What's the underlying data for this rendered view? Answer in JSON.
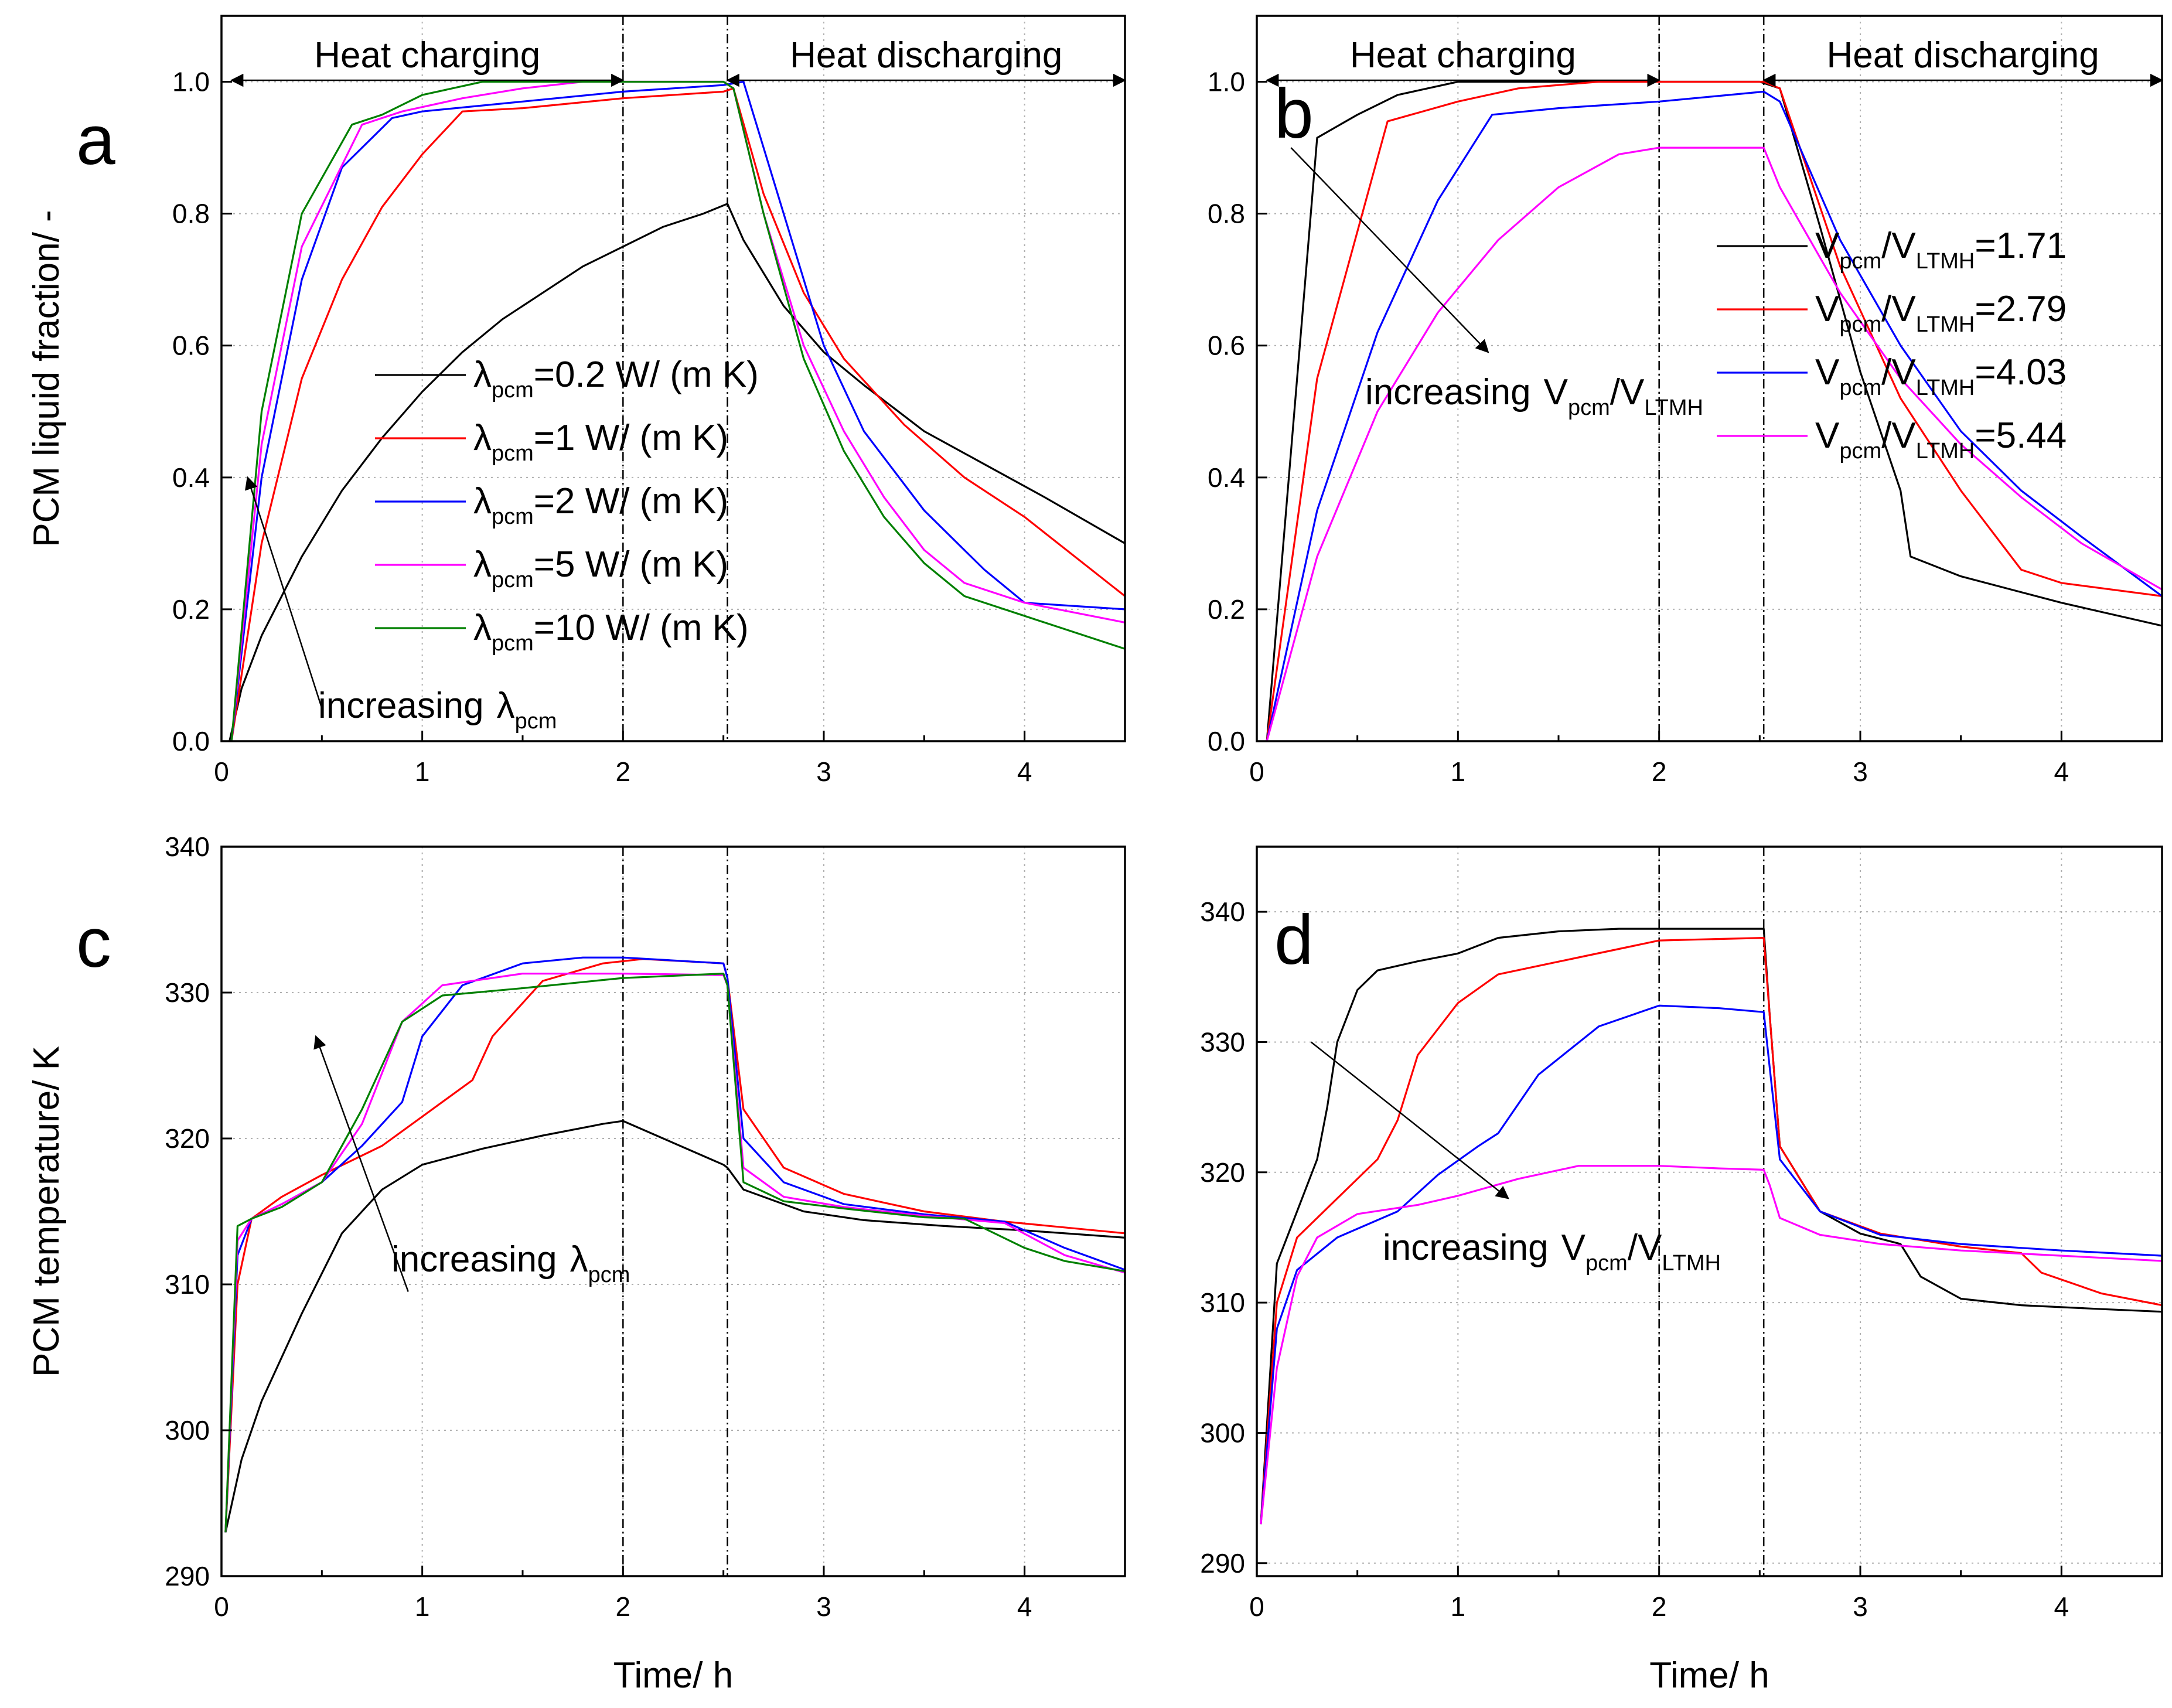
{
  "figure": {
    "shared_x_label": "Time/ h"
  },
  "chart_data": [
    {
      "id": "a",
      "type": "line",
      "panel_letter": "a",
      "xlabel": "",
      "ylabel": "PCM liquid fraction/ -",
      "xlim": [
        0,
        4.5
      ],
      "ylim": [
        0,
        1.1
      ],
      "xticks": [
        0,
        1,
        2,
        3,
        4
      ],
      "yticks": [
        0.0,
        0.2,
        0.4,
        0.6,
        0.8,
        1.0
      ],
      "ytick_labels": [
        "0.0",
        "0.2",
        "0.4",
        "0.6",
        "0.8",
        "1.0"
      ],
      "grid": true,
      "vlines": [
        2.0,
        2.52
      ],
      "phase_labels": {
        "charging": {
          "text": "Heat charging",
          "from": 0.05,
          "to": 2.0
        },
        "discharging": {
          "text": "Heat discharging",
          "from": 2.52,
          "to": 4.5
        }
      },
      "legend_location": "center",
      "annotation": {
        "text": "increasing",
        "sym": "λ",
        "sub": "pcm",
        "sup": "",
        "arrow": {
          "from": [
            0.5,
            0.05
          ],
          "to": [
            0.13,
            0.4
          ]
        }
      },
      "series": [
        {
          "name": "=0.2 W/ (m K)",
          "sym": "λ",
          "sub": "pcm",
          "color": "#000000",
          "x": [
            0.04,
            0.1,
            0.2,
            0.4,
            0.6,
            0.8,
            1.0,
            1.2,
            1.4,
            1.6,
            1.8,
            2.0,
            2.2,
            2.4,
            2.52,
            2.6,
            2.8,
            3.0,
            3.2,
            3.5,
            3.8,
            4.1,
            4.5
          ],
          "y": [
            0,
            0.08,
            0.16,
            0.28,
            0.38,
            0.46,
            0.53,
            0.59,
            0.64,
            0.68,
            0.72,
            0.75,
            0.78,
            0.8,
            0.815,
            0.76,
            0.66,
            0.59,
            0.54,
            0.47,
            0.42,
            0.37,
            0.3
          ]
        },
        {
          "name": "=1 W/ (m K)",
          "sym": "λ",
          "sub": "pcm",
          "color": "#ff0000",
          "x": [
            0.05,
            0.2,
            0.4,
            0.6,
            0.8,
            1.0,
            1.2,
            1.5,
            2.0,
            2.5,
            2.55,
            2.7,
            2.9,
            3.1,
            3.4,
            3.7,
            4.0,
            4.5
          ],
          "y": [
            0,
            0.3,
            0.55,
            0.7,
            0.81,
            0.89,
            0.955,
            0.96,
            0.975,
            0.985,
            0.99,
            0.83,
            0.68,
            0.58,
            0.48,
            0.4,
            0.34,
            0.22
          ]
        },
        {
          "name": "=2 W/ (m K)",
          "sym": "λ",
          "sub": "pcm",
          "color": "#0000ff",
          "x": [
            0.05,
            0.2,
            0.4,
            0.6,
            0.85,
            1.0,
            1.5,
            2.0,
            2.5,
            2.6,
            2.8,
            3.0,
            3.2,
            3.5,
            3.8,
            4.0,
            4.5
          ],
          "y": [
            0,
            0.4,
            0.7,
            0.87,
            0.945,
            0.955,
            0.97,
            0.985,
            0.995,
            1.0,
            0.8,
            0.6,
            0.47,
            0.35,
            0.26,
            0.21,
            0.2
          ]
        },
        {
          "name": "=5 W/ (m K)",
          "sym": "λ",
          "sub": "pcm",
          "color": "#ff00ff",
          "x": [
            0.05,
            0.2,
            0.4,
            0.7,
            0.9,
            1.2,
            1.5,
            1.8,
            2.0,
            2.5,
            2.55,
            2.7,
            2.9,
            3.1,
            3.3,
            3.5,
            3.7,
            4.0,
            4.5
          ],
          "y": [
            0,
            0.45,
            0.75,
            0.935,
            0.955,
            0.975,
            0.99,
            1.0,
            1.0,
            1.0,
            0.99,
            0.8,
            0.6,
            0.47,
            0.37,
            0.29,
            0.24,
            0.21,
            0.18
          ]
        },
        {
          "name": "=10 W/ (m K)",
          "sym": "λ",
          "sub": "pcm",
          "color": "#008000",
          "x": [
            0.05,
            0.2,
            0.4,
            0.65,
            0.8,
            1.0,
            1.3,
            1.5,
            2.0,
            2.5,
            2.55,
            2.7,
            2.9,
            3.1,
            3.3,
            3.5,
            3.7,
            4.0,
            4.5
          ],
          "y": [
            0,
            0.5,
            0.8,
            0.935,
            0.95,
            0.98,
            1.0,
            1.0,
            1.0,
            1.0,
            0.99,
            0.8,
            0.58,
            0.44,
            0.34,
            0.27,
            0.22,
            0.19,
            0.14
          ]
        }
      ]
    },
    {
      "id": "b",
      "type": "line",
      "panel_letter": "b",
      "xlabel": "",
      "ylabel": "",
      "xlim": [
        0,
        4.5
      ],
      "ylim": [
        0,
        1.1
      ],
      "xticks": [
        0,
        1,
        2,
        3,
        4
      ],
      "yticks": [
        0.0,
        0.2,
        0.4,
        0.6,
        0.8,
        1.0
      ],
      "ytick_labels": [
        "0.0",
        "0.2",
        "0.4",
        "0.6",
        "0.8",
        "1.0"
      ],
      "grid": true,
      "vlines": [
        2.0,
        2.52
      ],
      "phase_labels": {
        "charging": {
          "text": "Heat charging",
          "from": 0.05,
          "to": 2.0
        },
        "discharging": {
          "text": "Heat discharging",
          "from": 2.52,
          "to": 4.5
        }
      },
      "legend_location": "right",
      "annotation": {
        "text": "increasing",
        "sym": "V",
        "sub": "pcm",
        "sup": "LTMH",
        "arrow": {
          "from": [
            0.17,
            0.9
          ],
          "to": [
            1.15,
            0.59
          ]
        }
      },
      "series": [
        {
          "name": "/V",
          "sym": "V",
          "sub": "pcm",
          "sub2": "LTMH",
          "value": "=1.71",
          "color": "#000000",
          "x": [
            0.05,
            0.3,
            0.5,
            0.7,
            1.0,
            2.5,
            2.6,
            2.8,
            3.0,
            3.2,
            3.25,
            3.5,
            4.0,
            4.5
          ],
          "y": [
            0,
            0.915,
            0.95,
            0.98,
            1.0,
            1.0,
            0.99,
            0.78,
            0.56,
            0.38,
            0.28,
            0.25,
            0.21,
            0.175
          ]
        },
        {
          "name": "/V",
          "sym": "V",
          "sub": "pcm",
          "sub2": "LTMH",
          "value": "=2.79",
          "color": "#ff0000",
          "x": [
            0.05,
            0.3,
            0.65,
            1.0,
            1.3,
            1.7,
            2.0,
            2.52,
            2.6,
            2.9,
            3.2,
            3.5,
            3.8,
            4.0,
            4.5
          ],
          "y": [
            0,
            0.55,
            0.94,
            0.97,
            0.99,
            1.0,
            1.0,
            1.0,
            0.99,
            0.72,
            0.52,
            0.38,
            0.26,
            0.24,
            0.22
          ]
        },
        {
          "name": "/V",
          "sym": "V",
          "sub": "pcm",
          "sub2": "LTMH",
          "value": "=4.03",
          "color": "#0000ff",
          "x": [
            0.05,
            0.3,
            0.6,
            0.9,
            1.17,
            1.5,
            2.0,
            2.52,
            2.6,
            2.9,
            3.2,
            3.5,
            3.8,
            4.1,
            4.5
          ],
          "y": [
            0,
            0.35,
            0.62,
            0.82,
            0.95,
            0.96,
            0.97,
            0.985,
            0.97,
            0.76,
            0.6,
            0.47,
            0.38,
            0.31,
            0.22
          ]
        },
        {
          "name": "/V",
          "sym": "V",
          "sub": "pcm",
          "sub2": "LTMH",
          "value": "=5.44",
          "color": "#ff00ff",
          "x": [
            0.05,
            0.3,
            0.6,
            0.9,
            1.2,
            1.5,
            1.8,
            2.0,
            2.52,
            2.6,
            2.9,
            3.2,
            3.5,
            3.8,
            4.1,
            4.5
          ],
          "y": [
            0,
            0.28,
            0.5,
            0.65,
            0.76,
            0.84,
            0.89,
            0.9,
            0.9,
            0.84,
            0.68,
            0.55,
            0.45,
            0.37,
            0.3,
            0.23
          ]
        }
      ]
    },
    {
      "id": "c",
      "type": "line",
      "panel_letter": "c",
      "xlabel": "Time/ h",
      "ylabel": "PCM temperature/ K",
      "xlim": [
        0,
        4.5
      ],
      "ylim": [
        290,
        340
      ],
      "xticks": [
        0,
        1,
        2,
        3,
        4
      ],
      "yticks": [
        290,
        300,
        310,
        320,
        330,
        340
      ],
      "ytick_labels": [
        "290",
        "300",
        "310",
        "320",
        "330",
        "340"
      ],
      "grid": true,
      "vlines": [
        2.0,
        2.52
      ],
      "annotation": {
        "text": "increasing",
        "sym": "λ",
        "sub": "pcm",
        "sup": "",
        "arrow": {
          "from": [
            0.93,
            309.5
          ],
          "to": [
            0.47,
            327
          ]
        }
      },
      "series": [
        {
          "color": "#000000",
          "x": [
            0.02,
            0.1,
            0.2,
            0.4,
            0.6,
            0.8,
            1.0,
            1.3,
            1.6,
            1.9,
            2.0,
            2.2,
            2.4,
            2.5,
            2.52,
            2.6,
            2.9,
            3.2,
            3.6,
            4.0,
            4.5
          ],
          "y": [
            293,
            298,
            302,
            308,
            313.5,
            316.5,
            318.2,
            319.3,
            320.2,
            321,
            321.2,
            320,
            318.8,
            318.2,
            318,
            316.5,
            315,
            314.4,
            314,
            313.7,
            313.2
          ]
        },
        {
          "color": "#ff0000",
          "x": [
            0.02,
            0.08,
            0.15,
            0.3,
            0.5,
            0.8,
            1.0,
            1.25,
            1.35,
            1.6,
            1.9,
            2.1,
            2.5,
            2.52,
            2.6,
            2.8,
            3.1,
            3.5,
            3.9,
            4.5
          ],
          "y": [
            293,
            310,
            314.5,
            316,
            317.5,
            319.5,
            321.5,
            324,
            327,
            330.8,
            332,
            332.3,
            332,
            331,
            322,
            318,
            316.2,
            315,
            314.3,
            313.5
          ]
        },
        {
          "color": "#0000ff",
          "x": [
            0.02,
            0.08,
            0.15,
            0.3,
            0.5,
            0.7,
            0.9,
            1.0,
            1.2,
            1.5,
            1.8,
            2.0,
            2.5,
            2.52,
            2.6,
            2.8,
            3.1,
            3.5,
            3.9,
            4.2,
            4.5
          ],
          "y": [
            293,
            312,
            314.5,
            315.5,
            317,
            319.5,
            322.5,
            327,
            330.5,
            332,
            332.4,
            332.4,
            332,
            331,
            320,
            317,
            315.5,
            314.8,
            314.3,
            312.5,
            311
          ]
        },
        {
          "color": "#ff00ff",
          "x": [
            0.02,
            0.08,
            0.15,
            0.3,
            0.5,
            0.7,
            0.9,
            1.1,
            1.5,
            2.0,
            2.5,
            2.52,
            2.6,
            2.8,
            3.1,
            3.5,
            3.9,
            4.2,
            4.5
          ],
          "y": [
            293,
            313,
            314.5,
            315.5,
            317,
            321,
            328,
            330.5,
            331.3,
            331.3,
            331.2,
            330.5,
            318,
            316,
            315.3,
            314.7,
            314.2,
            312,
            310.8
          ]
        },
        {
          "color": "#008000",
          "x": [
            0.02,
            0.08,
            0.15,
            0.3,
            0.5,
            0.7,
            0.9,
            1.1,
            1.5,
            2.0,
            2.5,
            2.52,
            2.6,
            2.8,
            3.1,
            3.5,
            3.7,
            4.0,
            4.2,
            4.5
          ],
          "y": [
            293,
            314,
            314.5,
            315.3,
            317,
            322,
            328,
            329.8,
            330.3,
            331,
            331.3,
            330.5,
            317,
            315.7,
            315.2,
            314.6,
            314.5,
            312.5,
            311.6,
            310.9
          ]
        }
      ]
    },
    {
      "id": "d",
      "type": "line",
      "panel_letter": "d",
      "xlabel": "Time/ h",
      "ylabel": "",
      "xlim": [
        0,
        4.5
      ],
      "ylim": [
        289,
        345
      ],
      "xticks": [
        0,
        1,
        2,
        3,
        4
      ],
      "yticks": [
        290,
        300,
        310,
        320,
        330,
        340
      ],
      "ytick_labels": [
        "290",
        "300",
        "310",
        "320",
        "330",
        "340"
      ],
      "grid": true,
      "vlines": [
        2.0,
        2.52
      ],
      "annotation": {
        "text": "increasing",
        "sym": "V",
        "sub": "pcm",
        "sup": "LTMH",
        "arrow": {
          "from": [
            0.27,
            330
          ],
          "to": [
            1.25,
            318
          ]
        }
      },
      "series": [
        {
          "color": "#000000",
          "x": [
            0.02,
            0.1,
            0.2,
            0.3,
            0.35,
            0.4,
            0.5,
            0.6,
            0.8,
            1.0,
            1.2,
            1.5,
            1.8,
            2.0,
            2.52,
            2.55,
            2.6,
            2.8,
            3.0,
            3.2,
            3.3,
            3.5,
            3.8,
            4.2,
            4.5
          ],
          "y": [
            293,
            313,
            317,
            321,
            325,
            330,
            334,
            335.5,
            336.2,
            336.8,
            338,
            338.5,
            338.7,
            338.7,
            338.7,
            332,
            322,
            317,
            315.3,
            314.5,
            312,
            310.3,
            309.8,
            309.5,
            309.3
          ]
        },
        {
          "color": "#ff0000",
          "x": [
            0.02,
            0.1,
            0.2,
            0.4,
            0.6,
            0.7,
            0.8,
            1.0,
            1.2,
            1.6,
            2.0,
            2.52,
            2.55,
            2.6,
            2.8,
            3.1,
            3.5,
            3.8,
            3.9,
            4.2,
            4.5
          ],
          "y": [
            293,
            310,
            315,
            318,
            321,
            324,
            329,
            333,
            335.2,
            336.5,
            337.8,
            338,
            332,
            322,
            317,
            315.3,
            314.3,
            313.8,
            312.3,
            310.7,
            309.8
          ]
        },
        {
          "color": "#0000ff",
          "x": [
            0.02,
            0.1,
            0.2,
            0.4,
            0.7,
            0.9,
            1.1,
            1.2,
            1.4,
            1.7,
            2.0,
            2.3,
            2.52,
            2.55,
            2.6,
            2.8,
            3.1,
            3.5,
            4.0,
            4.5
          ],
          "y": [
            293,
            308,
            312.5,
            315,
            317,
            319.8,
            322,
            323,
            327.5,
            331.2,
            332.8,
            332.6,
            332.3,
            328,
            321,
            317,
            315.2,
            314.5,
            314,
            313.6
          ]
        },
        {
          "color": "#ff00ff",
          "x": [
            0.02,
            0.1,
            0.2,
            0.3,
            0.5,
            0.8,
            1.0,
            1.3,
            1.6,
            2.0,
            2.3,
            2.52,
            2.55,
            2.6,
            2.8,
            3.1,
            3.5,
            4.0,
            4.5
          ],
          "y": [
            293,
            305,
            312,
            315,
            316.8,
            317.5,
            318.2,
            319.5,
            320.5,
            320.5,
            320.3,
            320.2,
            319,
            316.5,
            315.2,
            314.5,
            314,
            313.6,
            313.2
          ]
        }
      ]
    }
  ]
}
